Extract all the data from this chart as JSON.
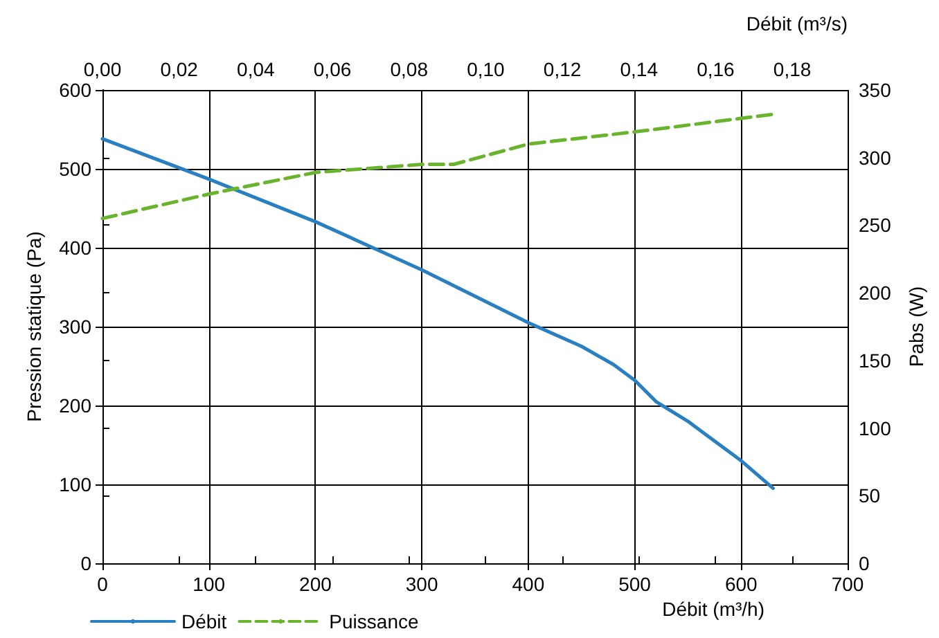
{
  "chart_data": {
    "type": "line",
    "xlabel": "Débit (m³/h)",
    "x2label": "Débit (m³/s)",
    "ylabel": "Pression statique (Pa)",
    "y2label": "Pabs (W)",
    "xlim": [
      0,
      700
    ],
    "xticks": [
      0,
      100,
      200,
      300,
      400,
      500,
      600,
      700
    ],
    "x2lim": [
      0,
      0.19444
    ],
    "x2ticks": [
      {
        "value": 0,
        "label": "0,00"
      },
      {
        "value": 0.02,
        "label": "0,02"
      },
      {
        "value": 0.04,
        "label": "0,04"
      },
      {
        "value": 0.06,
        "label": "0,06"
      },
      {
        "value": 0.08,
        "label": "0,08"
      },
      {
        "value": 0.1,
        "label": "0,10"
      },
      {
        "value": 0.12,
        "label": "0,12"
      },
      {
        "value": 0.14,
        "label": "0,14"
      },
      {
        "value": 0.16,
        "label": "0,16"
      },
      {
        "value": 0.18,
        "label": "0,18"
      }
    ],
    "ylim": [
      0,
      600
    ],
    "yticks": [
      0,
      100,
      200,
      300,
      400,
      500,
      600
    ],
    "y2lim": [
      0,
      350
    ],
    "y2ticks": [
      0,
      50,
      100,
      150,
      200,
      250,
      300,
      350
    ],
    "grid": true,
    "legend": "bottom left",
    "marker": "none",
    "series": [
      {
        "name": "Débit",
        "color": "#2a7fc1",
        "line_style": "solid",
        "x": [
          0,
          100,
          200,
          300,
          400,
          450,
          480,
          500,
          520,
          550,
          600,
          630
        ],
        "values": [
          538,
          487,
          433,
          372,
          305,
          275,
          252,
          232,
          205,
          180,
          130,
          95
        ]
      },
      {
        "name": "Puissance",
        "color": "#6ab42d",
        "line_style": "dashed",
        "axis": "y2",
        "x": [
          0,
          100,
          200,
          300,
          330,
          400,
          500,
          630
        ],
        "values": [
          255,
          273,
          289,
          295,
          295,
          310,
          319,
          332
        ]
      }
    ]
  }
}
